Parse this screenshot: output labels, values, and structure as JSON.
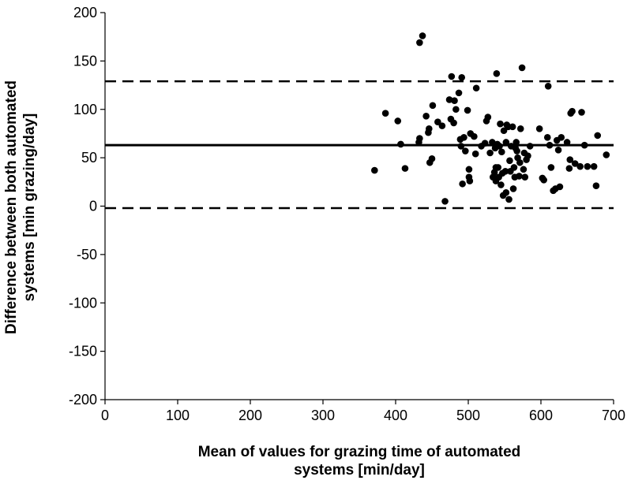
{
  "chart_data": {
    "type": "scatter",
    "xlabel_lines": [
      "Mean of values for grazing time of automated",
      "systems [min/day]"
    ],
    "ylabel_lines": [
      "Difference between both automated",
      "systems [min grazing/day]"
    ],
    "xlim": [
      0,
      700
    ],
    "ylim": [
      -200,
      200
    ],
    "x_ticks": [
      0,
      100,
      200,
      300,
      400,
      500,
      600,
      700
    ],
    "y_ticks": [
      -200,
      -150,
      -100,
      -50,
      0,
      50,
      100,
      150,
      200
    ],
    "grid": false,
    "reference_lines": {
      "mean": 63,
      "upper_limit": 129,
      "lower_limit": -2
    },
    "points": [
      [
        371,
        37
      ],
      [
        386,
        96
      ],
      [
        403,
        88
      ],
      [
        407,
        64
      ],
      [
        413,
        39
      ],
      [
        432,
        66
      ],
      [
        433,
        70
      ],
      [
        433,
        169
      ],
      [
        437,
        176
      ],
      [
        442,
        93
      ],
      [
        445,
        76
      ],
      [
        446,
        80
      ],
      [
        447,
        45
      ],
      [
        450,
        49
      ],
      [
        451,
        104
      ],
      [
        458,
        87
      ],
      [
        464,
        83
      ],
      [
        468,
        5
      ],
      [
        474,
        110
      ],
      [
        476,
        90
      ],
      [
        477,
        134
      ],
      [
        480,
        86
      ],
      [
        481,
        109
      ],
      [
        483,
        100
      ],
      [
        487,
        117
      ],
      [
        489,
        69
      ],
      [
        490,
        62
      ],
      [
        491,
        133
      ],
      [
        492,
        23
      ],
      [
        494,
        71
      ],
      [
        496,
        57
      ],
      [
        499,
        99
      ],
      [
        501,
        30
      ],
      [
        501,
        38
      ],
      [
        502,
        26
      ],
      [
        503,
        75
      ],
      [
        508,
        72
      ],
      [
        510,
        54
      ],
      [
        511,
        122
      ],
      [
        518,
        62
      ],
      [
        523,
        65
      ],
      [
        525,
        88
      ],
      [
        527,
        92
      ],
      [
        530,
        55
      ],
      [
        533,
        66
      ],
      [
        534,
        30
      ],
      [
        536,
        35
      ],
      [
        537,
        60
      ],
      [
        538,
        40
      ],
      [
        538,
        26
      ],
      [
        539,
        137
      ],
      [
        540,
        64
      ],
      [
        541,
        40
      ],
      [
        542,
        30
      ],
      [
        543,
        62
      ],
      [
        544,
        85
      ],
      [
        545,
        22
      ],
      [
        546,
        56
      ],
      [
        547,
        34
      ],
      [
        548,
        11
      ],
      [
        549,
        78
      ],
      [
        551,
        36
      ],
      [
        552,
        14
      ],
      [
        552,
        66
      ],
      [
        553,
        84
      ],
      [
        555,
        82
      ],
      [
        556,
        7
      ],
      [
        557,
        47
      ],
      [
        558,
        36
      ],
      [
        559,
        62
      ],
      [
        561,
        82
      ],
      [
        562,
        18
      ],
      [
        563,
        40
      ],
      [
        564,
        30
      ],
      [
        565,
        60
      ],
      [
        566,
        66
      ],
      [
        567,
        57
      ],
      [
        568,
        50
      ],
      [
        570,
        31
      ],
      [
        571,
        45
      ],
      [
        572,
        80
      ],
      [
        574,
        143
      ],
      [
        576,
        38
      ],
      [
        577,
        55
      ],
      [
        578,
        30
      ],
      [
        580,
        48
      ],
      [
        582,
        52
      ],
      [
        585,
        62
      ],
      [
        598,
        80
      ],
      [
        602,
        29
      ],
      [
        604,
        27
      ],
      [
        609,
        71
      ],
      [
        610,
        124
      ],
      [
        612,
        63
      ],
      [
        614,
        40
      ],
      [
        617,
        16
      ],
      [
        620,
        18
      ],
      [
        622,
        68
      ],
      [
        624,
        58
      ],
      [
        626,
        20
      ],
      [
        628,
        71
      ],
      [
        636,
        66
      ],
      [
        639,
        39
      ],
      [
        640,
        48
      ],
      [
        641,
        96
      ],
      [
        643,
        98
      ],
      [
        647,
        44
      ],
      [
        654,
        41
      ],
      [
        656,
        97
      ],
      [
        660,
        63
      ],
      [
        664,
        41
      ],
      [
        673,
        41
      ],
      [
        676,
        21
      ],
      [
        678,
        73
      ],
      [
        690,
        53
      ]
    ]
  }
}
